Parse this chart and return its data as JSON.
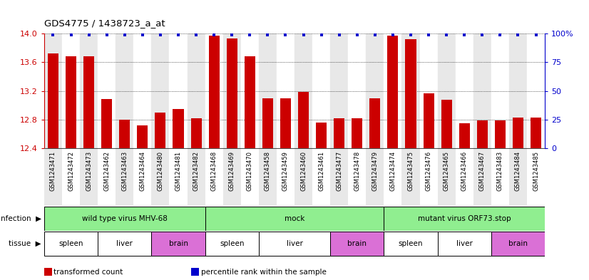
{
  "title": "GDS4775 / 1438723_a_at",
  "samples": [
    "GSM1243471",
    "GSM1243472",
    "GSM1243473",
    "GSM1243462",
    "GSM1243463",
    "GSM1243464",
    "GSM1243480",
    "GSM1243481",
    "GSM1243482",
    "GSM1243468",
    "GSM1243469",
    "GSM1243470",
    "GSM1243458",
    "GSM1243459",
    "GSM1243460",
    "GSM1243461",
    "GSM1243477",
    "GSM1243478",
    "GSM1243479",
    "GSM1243474",
    "GSM1243475",
    "GSM1243476",
    "GSM1243465",
    "GSM1243466",
    "GSM1243467",
    "GSM1243483",
    "GSM1243484",
    "GSM1243485"
  ],
  "bar_values": [
    13.72,
    13.68,
    13.68,
    13.09,
    12.8,
    12.72,
    12.9,
    12.95,
    12.82,
    13.97,
    13.93,
    13.68,
    13.1,
    13.1,
    13.19,
    12.76,
    12.82,
    12.82,
    13.1,
    13.97,
    13.92,
    13.17,
    13.08,
    12.75,
    12.79,
    12.79,
    12.83,
    12.83
  ],
  "percentile_values": [
    99,
    99,
    99,
    99,
    99,
    99,
    99,
    99,
    99,
    99,
    99,
    99,
    99,
    99,
    99,
    99,
    99,
    99,
    99,
    99,
    99,
    99,
    99,
    99,
    99,
    99,
    99,
    99
  ],
  "bar_color": "#cc0000",
  "percentile_color": "#0000cc",
  "ylim_left": [
    12.4,
    14.0
  ],
  "ylim_right": [
    0,
    100
  ],
  "yticks_left": [
    12.4,
    12.8,
    13.2,
    13.6,
    14.0
  ],
  "yticks_right": [
    0,
    25,
    50,
    75,
    100
  ],
  "ytick_labels_right": [
    "0",
    "25",
    "50",
    "75",
    "100%"
  ],
  "infection_groups": [
    {
      "label": "wild type virus MHV-68",
      "start": 0,
      "end": 9
    },
    {
      "label": "mock",
      "start": 9,
      "end": 19
    },
    {
      "label": "mutant virus ORF73.stop",
      "start": 19,
      "end": 28
    }
  ],
  "tissue_groups": [
    {
      "label": "spleen",
      "start": 0,
      "end": 3
    },
    {
      "label": "liver",
      "start": 3,
      "end": 6
    },
    {
      "label": "brain",
      "start": 6,
      "end": 9
    },
    {
      "label": "spleen",
      "start": 9,
      "end": 12
    },
    {
      "label": "liver",
      "start": 12,
      "end": 16
    },
    {
      "label": "brain",
      "start": 16,
      "end": 19
    },
    {
      "label": "spleen",
      "start": 19,
      "end": 22
    },
    {
      "label": "liver",
      "start": 22,
      "end": 25
    },
    {
      "label": "brain",
      "start": 25,
      "end": 28
    }
  ],
  "infection_color": "#90ee90",
  "tissue_color_brain": "#da70d6",
  "tissue_color_other": "#ffffff",
  "infection_label": "infection",
  "tissue_label": "tissue",
  "legend_items": [
    {
      "label": "transformed count",
      "color": "#cc0000"
    },
    {
      "label": "percentile rank within the sample",
      "color": "#0000cc"
    }
  ],
  "bg_color_even": "#e8e8e8",
  "bg_color_odd": "#ffffff"
}
